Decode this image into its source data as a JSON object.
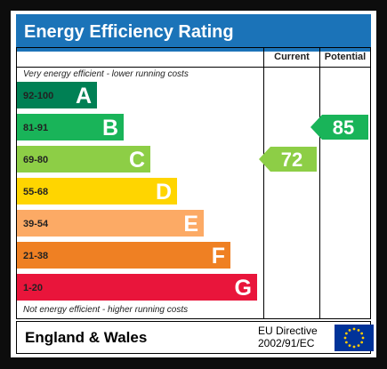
{
  "title": "Energy Efficiency Rating",
  "columns": {
    "current": "Current",
    "potential": "Potential"
  },
  "top_note": "Very energy efficient - lower running costs",
  "bottom_note": "Not energy efficient - higher running costs",
  "footer": {
    "country": "England & Wales",
    "directive_line1": "EU Directive",
    "directive_line2": "2002/91/EC"
  },
  "chart_data": {
    "type": "bar",
    "title": "Energy Efficiency Rating",
    "bands": [
      {
        "letter": "A",
        "range": "92-100",
        "color": "#008054"
      },
      {
        "letter": "B",
        "range": "81-91",
        "color": "#19b459"
      },
      {
        "letter": "C",
        "range": "69-80",
        "color": "#8dce46"
      },
      {
        "letter": "D",
        "range": "55-68",
        "color": "#ffd500"
      },
      {
        "letter": "E",
        "range": "39-54",
        "color": "#fcaa65"
      },
      {
        "letter": "F",
        "range": "21-38",
        "color": "#ef8023"
      },
      {
        "letter": "G",
        "range": "1-20",
        "color": "#e9153b"
      }
    ],
    "ratings": [
      {
        "name": "Current",
        "value": 72,
        "band": "C",
        "color": "#8dce46"
      },
      {
        "name": "Potential",
        "value": 85,
        "band": "B",
        "color": "#19b459"
      }
    ]
  }
}
